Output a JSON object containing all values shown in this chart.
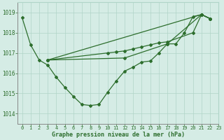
{
  "title": "Graphe pression niveau de la mer (hPa)",
  "background_color": "#d5ece5",
  "grid_color": "#b0d5c8",
  "line_color": "#2d6e2d",
  "xlim": [
    -0.5,
    23
  ],
  "ylim": [
    1013.5,
    1019.5
  ],
  "yticks": [
    1014,
    1015,
    1016,
    1017,
    1018,
    1019
  ],
  "xticks": [
    0,
    1,
    2,
    3,
    4,
    5,
    6,
    7,
    8,
    9,
    10,
    11,
    12,
    13,
    14,
    15,
    16,
    17,
    18,
    19,
    20,
    21,
    22,
    23
  ],
  "series0_x": [
    0,
    1,
    2,
    3,
    4,
    5,
    6,
    7,
    8,
    9,
    10,
    11,
    12,
    13,
    14,
    15,
    16,
    17,
    18,
    19,
    20,
    21,
    22
  ],
  "series0_y": [
    1018.75,
    1017.4,
    1016.65,
    1016.4,
    1015.8,
    1015.3,
    1014.85,
    1014.45,
    1014.4,
    1014.45,
    1015.05,
    1015.6,
    1016.1,
    1016.3,
    1016.55,
    1016.6,
    1017.0,
    1017.45,
    1017.45,
    1018.0,
    1018.8,
    1018.9,
    1018.7
  ],
  "series1_x": [
    3,
    10,
    11,
    12,
    13,
    14,
    15,
    16,
    17,
    20,
    21,
    22
  ],
  "series1_y": [
    1016.65,
    1017.0,
    1017.05,
    1017.1,
    1017.2,
    1017.3,
    1017.4,
    1017.5,
    1017.55,
    1018.0,
    1018.9,
    1018.7
  ],
  "series2_x": [
    3,
    12,
    17,
    21,
    22
  ],
  "series2_y": [
    1016.65,
    1016.75,
    1017.45,
    1018.9,
    1018.7
  ],
  "series3_x": [
    3,
    21,
    22
  ],
  "series3_y": [
    1016.65,
    1018.9,
    1018.7
  ]
}
